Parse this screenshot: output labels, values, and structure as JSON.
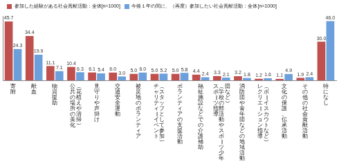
{
  "chart_data": {
    "type": "bar",
    "categories": [
      "寄附",
      "献血",
      "物資援助",
      "公共の場所の美化（花植えや清掃）",
      "見守りや声掛け",
      "交通安全運動",
      "被災地のボランティア",
      "チャリティーイベント（スタッフとして参加）",
      "ボランティアの支援活動",
      "福祉施設などでの介護補助",
      "スポーツ指導（学校の部活動やスポーツ少年団など）",
      "消防団や青年団などの地域活動",
      "レクリエーション指導（ボーイスカウトなど）",
      "文化の保護、伝承活動",
      "その他の社会貢献活動",
      "特になし"
    ],
    "series": [
      {
        "name": "参加した経験がある社会貢献活動：全体[n=1000]",
        "color": "#C0504D",
        "values": [
          45.7,
          34.4,
          11.1,
          10.4,
          6.1,
          6.0,
          5.0,
          5.0,
          5.0,
          4.4,
          3.3,
          3.2,
          1.2,
          1.1,
          1.9,
          30.0
        ],
        "value_labels": [
          "45.7",
          "34.4",
          "11.1",
          "10.4",
          "6.1",
          "6.0",
          "5.0",
          "5.0",
          "5.0",
          "4.4",
          "3.3",
          "3.2",
          "1.2",
          "1.1",
          "1.9",
          "30.0"
        ]
      },
      {
        "name": "今後１年の間に、（再度）参加したい社会貢献活動：全体[n=1000]",
        "color": "#6CA0DC",
        "values": [
          24.3,
          19.9,
          7.1,
          6.3,
          5.4,
          3.0,
          6.0,
          5.2,
          5.8,
          2.4,
          2.1,
          1.8,
          1.6,
          4.9,
          2.4,
          46.0
        ],
        "value_labels": [
          "24.3",
          "19.9",
          "7.1",
          "6.3",
          "5.4",
          "3.0",
          "6.0",
          "5.2",
          "5.8",
          "2.4",
          "2.1",
          "1.8",
          "1.6",
          "4.9",
          "2.4",
          "46.0"
        ]
      }
    ],
    "ylim": [
      0,
      50
    ],
    "grid": false,
    "legend": "top",
    "data_labels": true,
    "tick_labels": "x"
  }
}
